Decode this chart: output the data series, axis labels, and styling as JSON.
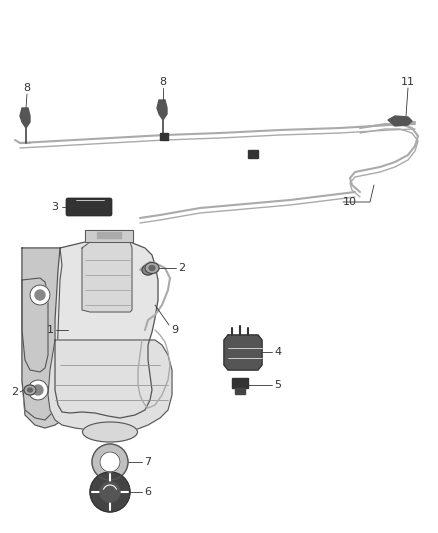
{
  "bg_color": "#ffffff",
  "line_color": "#999999",
  "dark_color": "#444444",
  "label_color": "#333333",
  "figsize": [
    4.38,
    5.33
  ],
  "dpi": 100,
  "tube_color": "#aaaaaa",
  "part_fill": "#e8e8e8",
  "part_edge": "#555555"
}
